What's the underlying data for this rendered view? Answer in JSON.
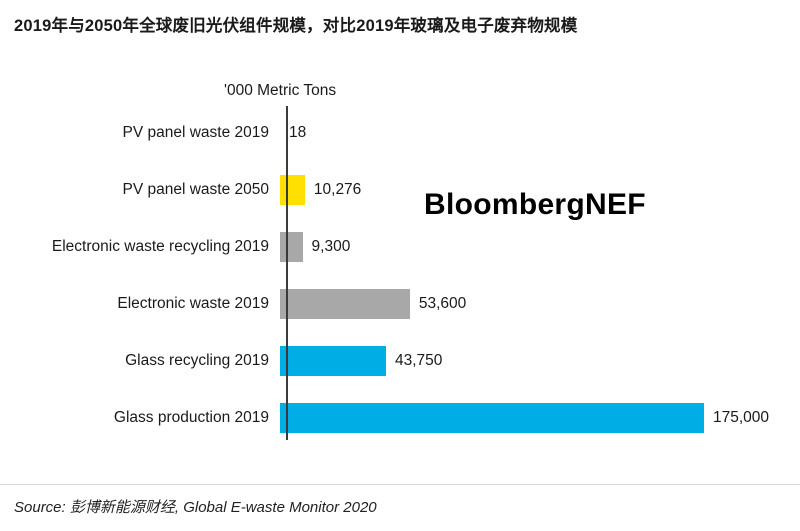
{
  "title": "2019年与2050年全球废旧光伏组件规模，对比2019年玻璃及电子废弃物规模",
  "watermark": "BloombergNEF",
  "source": "Source: 彭博新能源财经, Global E-waste Monitor 2020",
  "chart_data": {
    "type": "bar",
    "orientation": "horizontal",
    "title": "2019年与2050年全球废旧光伏组件规模，对比2019年玻璃及电子废弃物规模",
    "unit_label": "'000 Metric Tons",
    "categories": [
      "PV panel waste 2019",
      "PV panel waste 2050",
      "Electronic waste recycling 2019",
      "Electronic waste 2019",
      "Glass recycling 2019",
      "Glass production 2019"
    ],
    "values": [
      18,
      10276,
      9300,
      53600,
      43750,
      175000
    ],
    "value_labels": [
      "18",
      "10,276",
      "9,300",
      "53,600",
      "43,750",
      "175,000"
    ],
    "colors": [
      "#ffe000",
      "#ffe000",
      "#a8a8a8",
      "#a8a8a8",
      "#00aee6",
      "#00aee6"
    ],
    "xlim": [
      0,
      175000
    ],
    "grid": false,
    "legend": "none"
  }
}
